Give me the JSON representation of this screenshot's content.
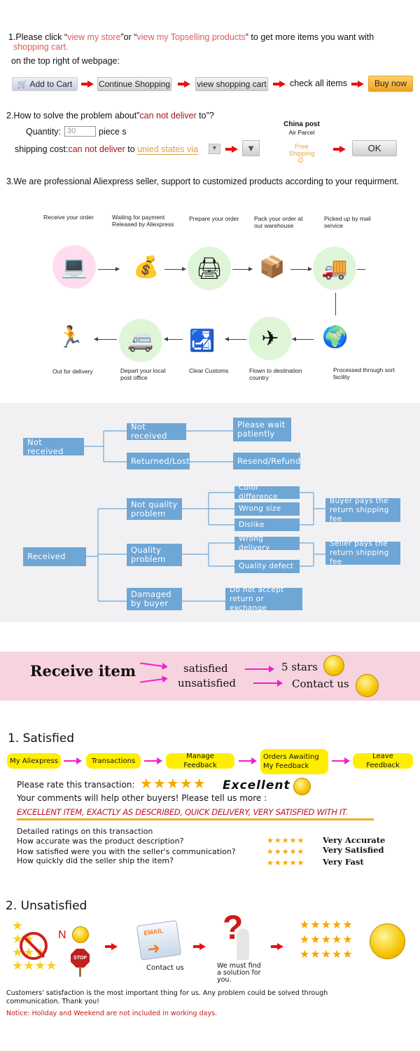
{
  "section1": {
    "prefix": "1.Please click “",
    "link1": "view my store",
    "mid": "”or “",
    "link2": "view my Topselling products",
    "suffix": "” to get more items you want with",
    "link3": "shopping cart.",
    "line2": "on the top right of webpage:",
    "steps": [
      "Add to Cart",
      "Continue Shopping",
      "view shopping cart",
      "check all items",
      "Buy now"
    ]
  },
  "section2": {
    "prefix": "2.How to solve the problem about”",
    "red": "can not deliver",
    "suffix": " to”?",
    "quantity_label": "Quantity:",
    "quantity_value": "30",
    "unit": "piece s",
    "shipping_label": "shipping cost:",
    "shipping_red": "can not deliver",
    "to": " to ",
    "destination": "unied states via",
    "carrier": "China post",
    "carrier_sub": "Air Parcel",
    "free": "Free Shipping",
    "ok": "OK"
  },
  "section3": {
    "text": "3.We are professional Aliexpress seller, support to customized products according to your requirment."
  },
  "process": {
    "top": [
      "Receive your order",
      "Waiting for payment Released by Aliexpress",
      "Prepare your order",
      "Pack your order at our warehouse",
      "Picked up by mail service"
    ],
    "bottom": [
      "Out for delivery",
      "Depart your local post office",
      "Clear Customs",
      "Flown to destination country",
      "Processed through sort facility"
    ]
  },
  "tree": {
    "not_received": "Not received",
    "not_received_2": "Not received",
    "returned_lost": "Returned/Lost",
    "please_wait": "Please wait patiently",
    "resend_refund": "Resend/Refund",
    "received": "Received",
    "not_quality": "Not quality problem",
    "quality": "Quality problem",
    "damaged": "Damaged by buyer",
    "color_difference": "Color difference",
    "wrong_size": "Wrong size",
    "dislike": "Dislike",
    "wrong_delivery": "Wrong delivery",
    "quality_defect": "Quality defect",
    "do_not_accept": "Do not accept return or exchange",
    "buyer_pays": "Buyer pays the return shipping fee",
    "seller_pays": "Seller pays the return shipping fee",
    "accent": "#6ea6d6"
  },
  "banner": {
    "receive": "Receive item",
    "satisfied": "satisfied",
    "unsatisfied": "unsatisfied",
    "five_stars": "5 stars",
    "contact": "Contact us"
  },
  "satisfied": {
    "title": "1. Satisfied",
    "steps": [
      "My Aliexpress",
      "Transactions",
      "Manage Feedback",
      "Orders Awaiting My Feedback",
      "Leave Feedback"
    ],
    "rate": "Please rate this transaction:",
    "excellent": "Excellent",
    "comments": "Your comments will help other buyers! Please tell us more :",
    "review": "EXCELLENT ITEM, EXACTLY AS DESCRIBED, QUICK DELIVERY, VERY SATISFIED WITH IT.",
    "detailed": "Detailed ratings on this transaction",
    "questions": [
      "How accurate was the product description?",
      "How satisfied were you with the seller's communication?",
      "How quickly did the seller ship the item?"
    ],
    "answers": [
      "Very Accurate",
      "Very Satisfied",
      "Very Fast"
    ],
    "stars": 5
  },
  "unsatisfied": {
    "title": "2. Unsatisfied",
    "n": "N",
    "stop": "STOP",
    "email": "EMAIL",
    "contact": "Contact us",
    "solution": "We must find a solution for you.",
    "footer": "Customers' satisfaction is the most important thing for us. Any problem could be solved through communication. Thank you!",
    "notice": "Notice: Holiday and Weekend are not included in working days."
  }
}
